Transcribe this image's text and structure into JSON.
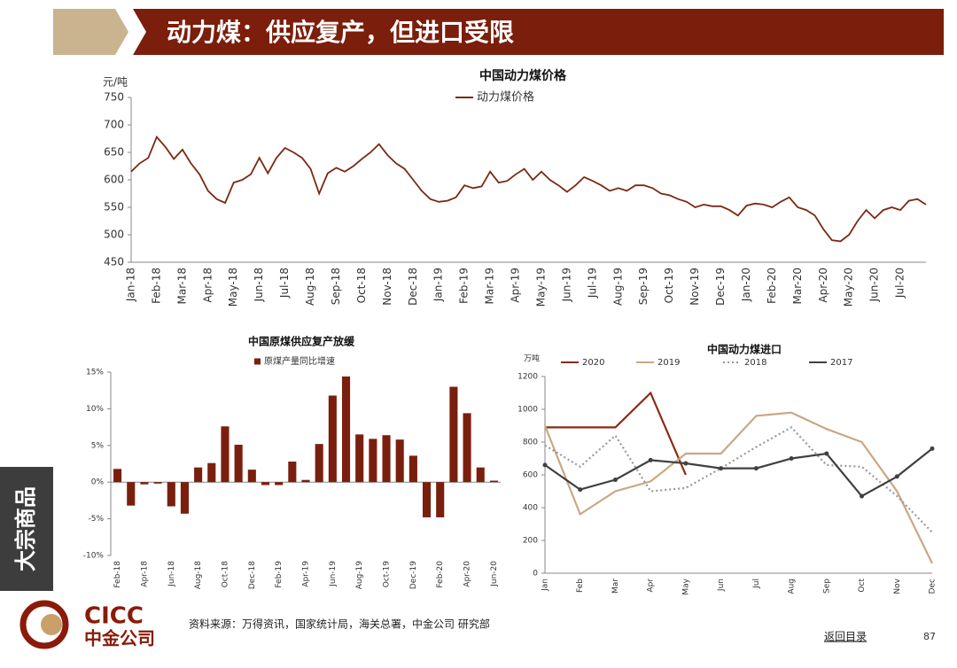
{
  "header": {
    "title": "动力煤：供应复产，但进口受限"
  },
  "side_tab": "大宗商品",
  "footer": {
    "source": "资料来源：万得资讯，国家统计局，海关总署，中金公司 研究部",
    "back": "返回目录",
    "page": "87"
  },
  "logo": {
    "en": "CICC",
    "cn": "中金公司"
  },
  "chart_data": [
    {
      "type": "line",
      "title": "中国动力煤价格",
      "y_label": "元/吨",
      "categories": [
        "Jan-18",
        null,
        null,
        "Feb-18",
        null,
        null,
        "Mar-18",
        null,
        null,
        "Apr-18",
        null,
        null,
        "May-18",
        null,
        null,
        "Jun-18",
        null,
        null,
        "Jul-18",
        null,
        null,
        "Aug-18",
        null,
        null,
        "Sep-18",
        null,
        null,
        "Oct-18",
        null,
        null,
        "Nov-18",
        null,
        null,
        "Dec-18",
        null,
        null,
        "Jan-19",
        null,
        null,
        "Feb-19",
        null,
        null,
        "Mar-19",
        null,
        null,
        "Apr-19",
        null,
        null,
        "May-19",
        null,
        null,
        "Jun-19",
        null,
        null,
        "Jul-19",
        null,
        null,
        "Aug-19",
        null,
        null,
        "Sep-19",
        null,
        null,
        "Oct-19",
        null,
        null,
        "Nov-19",
        null,
        null,
        "Dec-19",
        null,
        null,
        "Jan-20",
        null,
        null,
        "Feb-20",
        null,
        null,
        "Mar-20",
        null,
        null,
        "Apr-20",
        null,
        null,
        "May-20",
        null,
        null,
        "Jun-20",
        null,
        null,
        "Jul-20",
        null,
        null,
        null
      ],
      "series": [
        {
          "name": "动力煤价格",
          "color": "#7a2a12",
          "values": [
            615,
            630,
            640,
            678,
            660,
            638,
            655,
            630,
            610,
            580,
            565,
            558,
            595,
            600,
            610,
            640,
            612,
            640,
            658,
            650,
            640,
            620,
            575,
            612,
            622,
            615,
            625,
            638,
            650,
            665,
            645,
            630,
            620,
            600,
            580,
            565,
            560,
            562,
            568,
            590,
            585,
            588,
            615,
            595,
            598,
            610,
            620,
            600,
            615,
            600,
            590,
            578,
            590,
            605,
            598,
            590,
            580,
            585,
            580,
            590,
            590,
            585,
            575,
            572,
            565,
            560,
            550,
            555,
            552,
            552,
            545,
            535,
            553,
            557,
            555,
            550,
            560,
            568,
            550,
            545,
            535,
            510,
            490,
            488,
            500,
            525,
            545,
            530,
            545,
            550,
            545,
            562,
            565,
            555
          ]
        }
      ],
      "ylim": [
        450,
        750
      ],
      "yticks": [
        450,
        500,
        550,
        600,
        650,
        700,
        750
      ]
    },
    {
      "type": "bar",
      "title": "中国原煤供应复产放缓",
      "categories": [
        "Feb-18",
        null,
        "Apr-18",
        null,
        "Jun-18",
        null,
        "Aug-18",
        null,
        "Oct-18",
        null,
        "Dec-18",
        null,
        "Feb-19",
        null,
        "Apr-19",
        null,
        "Jun-19",
        null,
        "Aug-19",
        null,
        "Oct-19",
        null,
        "Dec-19",
        null,
        "Feb-20",
        null,
        "Apr-20",
        null,
        "Jun-20"
      ],
      "series": [
        {
          "name": "原煤产量同比增速",
          "color": "#7a1f0e",
          "values": [
            1.8,
            -3.2,
            -0.3,
            -0.2,
            -3.3,
            -4.3,
            2.0,
            2.6,
            7.6,
            5.1,
            1.7,
            -0.4,
            -0.4,
            2.8,
            0.3,
            5.2,
            11.8,
            14.4,
            6.5,
            5.9,
            6.4,
            5.8,
            3.6,
            -4.8,
            -4.8,
            13.0,
            9.4,
            2.0,
            0.2
          ]
        }
      ],
      "ylim": [
        -10,
        15
      ],
      "yticks": [
        {
          "value": -10,
          "label": "-10%"
        },
        {
          "value": -5,
          "label": "-5%"
        },
        {
          "value": 0,
          "label": "0%"
        },
        {
          "value": 5,
          "label": "5%"
        },
        {
          "value": 10,
          "label": "10%"
        },
        {
          "value": 15,
          "label": "15%"
        }
      ]
    },
    {
      "type": "line",
      "title": "中国动力煤进口",
      "y_label": "万吨",
      "categories": [
        "Jan",
        "Feb",
        "Mar",
        "Apr",
        "May",
        "Jun",
        "Jul",
        "Aug",
        "Sep",
        "Oct",
        "Nov",
        "Dec"
      ],
      "series": [
        {
          "name": "2020",
          "color": "#8b2a12",
          "values": [
            890,
            890,
            890,
            1100,
            600,
            null,
            null,
            null,
            null,
            null,
            null,
            null
          ]
        },
        {
          "name": "2019",
          "color": "#c9a882",
          "values": [
            900,
            360,
            500,
            560,
            730,
            730,
            960,
            980,
            880,
            800,
            500,
            60
          ]
        },
        {
          "name": "2018",
          "color": "#999999",
          "style": "dotted",
          "values": [
            780,
            650,
            840,
            500,
            520,
            640,
            770,
            890,
            660,
            650,
            470,
            250
          ]
        },
        {
          "name": "2017",
          "color": "#404040",
          "marker": true,
          "values": [
            660,
            510,
            570,
            690,
            670,
            640,
            640,
            700,
            730,
            470,
            590,
            760
          ]
        }
      ],
      "ylim": [
        0,
        1200
      ],
      "yticks": [
        0,
        200,
        400,
        600,
        800,
        1000,
        1200
      ]
    }
  ]
}
